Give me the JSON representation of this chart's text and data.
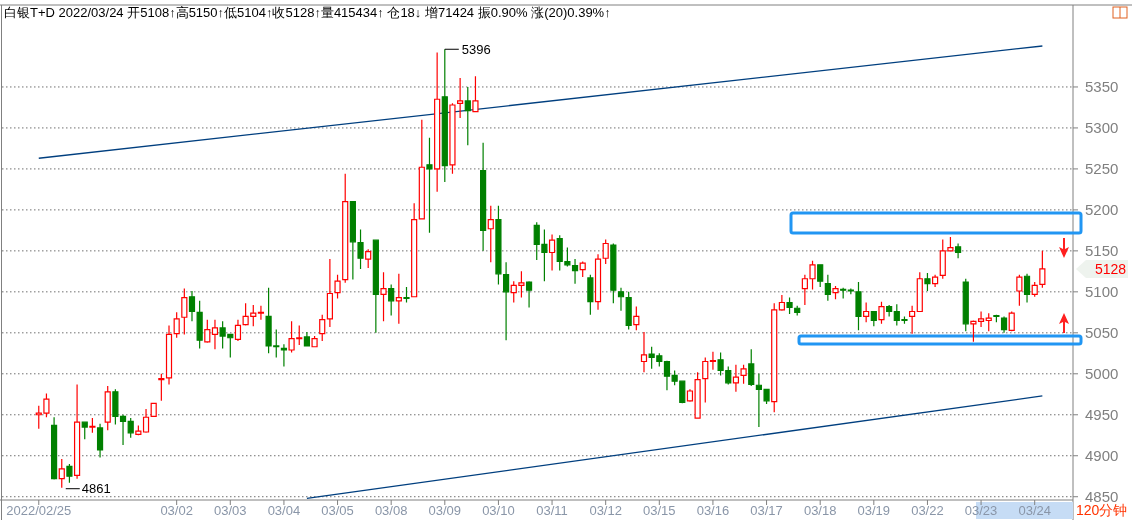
{
  "chart_data": {
    "type": "candlestick",
    "title": "白银T+D 2022/03/24 开5108↑高5150↑低5104↑收5128↑量415434↑ 仓18↓ 增71424 振0.90% 涨(20)0.39%↑",
    "categories": [
      "2022/02/25",
      null,
      null,
      null,
      null,
      null,
      null,
      null,
      null,
      null,
      null,
      null,
      null,
      null,
      null,
      null,
      null,
      null,
      "03/02",
      null,
      null,
      null,
      null,
      null,
      null,
      "03/03",
      null,
      null,
      null,
      null,
      null,
      null,
      "03/04",
      null,
      null,
      null,
      null,
      null,
      null,
      "03/05",
      null,
      null,
      null,
      null,
      null,
      null,
      "03/08",
      null,
      null,
      null,
      null,
      null,
      null,
      "03/09",
      null,
      null,
      null,
      null,
      null,
      null,
      "03/10",
      null,
      null,
      null,
      null,
      null,
      null,
      "03/11",
      null,
      null,
      null,
      null,
      null,
      null,
      "03/12",
      null,
      null,
      null,
      null,
      null,
      null,
      "03/15",
      null,
      null,
      null,
      null,
      null,
      null,
      "03/16",
      null,
      null,
      null,
      null,
      null,
      null,
      "03/17",
      null,
      null,
      null,
      null,
      null,
      null,
      "03/18",
      null,
      null,
      null,
      null,
      null,
      null,
      "03/19",
      null,
      null,
      null,
      null,
      null,
      null,
      "03/22",
      null,
      null,
      null,
      null,
      null,
      null,
      "03/23",
      null,
      null,
      null,
      null,
      null,
      null,
      "03/24",
      null
    ],
    "ohlc": [
      [
        4950,
        4961,
        4933,
        4952
      ],
      [
        4952,
        4976,
        4947,
        4969
      ],
      [
        4937,
        4947,
        4871,
        4872
      ],
      [
        4872,
        4896,
        4861,
        4884
      ],
      [
        4887,
        4890,
        4867,
        4875
      ],
      [
        4876,
        4987,
        4872,
        4941
      ],
      [
        4941,
        4941,
        4920,
        4935
      ],
      [
        4935,
        4946,
        4928,
        4936
      ],
      [
        4934,
        4939,
        4898,
        4907
      ],
      [
        4941,
        4985,
        4931,
        4978
      ],
      [
        4978,
        4981,
        4938,
        4948
      ],
      [
        4948,
        4950,
        4913,
        4942
      ],
      [
        4942,
        4946,
        4922,
        4928
      ],
      [
        4926,
        4937,
        4925,
        4930
      ],
      [
        4929,
        4957,
        4928,
        4947
      ],
      [
        4948,
        4964,
        4948,
        4964
      ],
      [
        4993,
        5000,
        4967,
        4994
      ],
      [
        4995,
        5059,
        4987,
        5048
      ],
      [
        5049,
        5075,
        5044,
        5067
      ],
      [
        5069,
        5104,
        5048,
        5093
      ],
      [
        5094,
        5101,
        5064,
        5076
      ],
      [
        5075,
        5089,
        5031,
        5041
      ],
      [
        5039,
        5066,
        5038,
        5054
      ],
      [
        5048,
        5066,
        5030,
        5056
      ],
      [
        5056,
        5064,
        5031,
        5046
      ],
      [
        5048,
        5048,
        5020,
        5044
      ],
      [
        5042,
        5066,
        5040,
        5059
      ],
      [
        5060,
        5086,
        5059,
        5070
      ],
      [
        5070,
        5084,
        5058,
        5074
      ],
      [
        5074,
        5083,
        5066,
        5075
      ],
      [
        5070,
        5105,
        5025,
        5034
      ],
      [
        5034,
        5054,
        5020,
        5033
      ],
      [
        5031,
        5036,
        5009,
        5029
      ],
      [
        5029,
        5064,
        5026,
        5043
      ],
      [
        5043,
        5059,
        5035,
        5044
      ],
      [
        5045,
        5051,
        5034,
        5034
      ],
      [
        5033,
        5046,
        5033,
        5043
      ],
      [
        5049,
        5072,
        5040,
        5066
      ],
      [
        5067,
        5140,
        5057,
        5098
      ],
      [
        5099,
        5121,
        5092,
        5113
      ],
      [
        5115,
        5244,
        5111,
        5210
      ],
      [
        5210,
        5210,
        5115,
        5161
      ],
      [
        5160,
        5176,
        5128,
        5141
      ],
      [
        5140,
        5152,
        5129,
        5149
      ],
      [
        5163,
        5163,
        5050,
        5097
      ],
      [
        5097,
        5124,
        5064,
        5104
      ],
      [
        5104,
        5109,
        5071,
        5089
      ],
      [
        5089,
        5122,
        5061,
        5093
      ],
      [
        5093,
        5106,
        5087,
        5092
      ],
      [
        5094,
        5208,
        5094,
        5188
      ],
      [
        5189,
        5310,
        5189,
        5252
      ],
      [
        5255,
        5288,
        5172,
        5250
      ],
      [
        5250,
        5392,
        5222,
        5335
      ],
      [
        5338,
        5396,
        5234,
        5254
      ],
      [
        5255,
        5330,
        5244,
        5328
      ],
      [
        5330,
        5361,
        5312,
        5333
      ],
      [
        5333,
        5350,
        5279,
        5321
      ],
      [
        5320,
        5363,
        5320,
        5333
      ],
      [
        5248,
        5282,
        5150,
        5175
      ],
      [
        5177,
        5205,
        5136,
        5188
      ],
      [
        5188,
        5205,
        5109,
        5122
      ],
      [
        5121,
        5136,
        5041,
        5100
      ],
      [
        5099,
        5113,
        5087,
        5108
      ],
      [
        5108,
        5125,
        5093,
        5111
      ],
      [
        5112,
        5113,
        5081,
        5102
      ],
      [
        5181,
        5185,
        5139,
        5158
      ],
      [
        5158,
        5176,
        5113,
        5148
      ],
      [
        5148,
        5170,
        5126,
        5163
      ],
      [
        5165,
        5169,
        5126,
        5137
      ],
      [
        5137,
        5154,
        5131,
        5133
      ],
      [
        5132,
        5140,
        5110,
        5126
      ],
      [
        5127,
        5137,
        5118,
        5135
      ],
      [
        5117,
        5121,
        5072,
        5088
      ],
      [
        5088,
        5146,
        5078,
        5140
      ],
      [
        5141,
        5164,
        5134,
        5159
      ],
      [
        5157,
        5159,
        5086,
        5102
      ],
      [
        5100,
        5105,
        5077,
        5094
      ],
      [
        5093,
        5100,
        5054,
        5059
      ],
      [
        5060,
        5082,
        5053,
        5070
      ],
      [
        5015,
        5051,
        5002,
        5023
      ],
      [
        5024,
        5033,
        5006,
        5020
      ],
      [
        5022,
        5025,
        5009,
        5015
      ],
      [
        5015,
        5016,
        4980,
        4997
      ],
      [
        4998,
        5004,
        4986,
        4991
      ],
      [
        4991,
        4991,
        4964,
        4965
      ],
      [
        4967,
        4981,
        4966,
        4979
      ],
      [
        4946,
        5002,
        4946,
        4993
      ],
      [
        4994,
        5020,
        4965,
        5015
      ],
      [
        5015,
        5027,
        5005,
        5016
      ],
      [
        5017,
        5026,
        4998,
        5004
      ],
      [
        5004,
        5009,
        4987,
        4989
      ],
      [
        4989,
        5011,
        4978,
        4996
      ],
      [
        4998,
        5011,
        4988,
        5006
      ],
      [
        5012,
        5030,
        4985,
        4987
      ],
      [
        4986,
        5000,
        4935,
        4981
      ],
      [
        4981,
        4981,
        4963,
        4967
      ],
      [
        4966,
        5086,
        4953,
        5078
      ],
      [
        5078,
        5096,
        5077,
        5087
      ],
      [
        5087,
        5093,
        5073,
        5081
      ],
      [
        5080,
        5083,
        5071,
        5075
      ],
      [
        5104,
        5121,
        5084,
        5116
      ],
      [
        5116,
        5138,
        5103,
        5133
      ],
      [
        5133,
        5133,
        5106,
        5113
      ],
      [
        5110,
        5121,
        5089,
        5097
      ],
      [
        5099,
        5107,
        5091,
        5104
      ],
      [
        5103,
        5105,
        5092,
        5102
      ],
      [
        5102,
        5104,
        5097,
        5101
      ],
      [
        5100,
        5112,
        5053,
        5070
      ],
      [
        5070,
        5087,
        5063,
        5076
      ],
      [
        5076,
        5076,
        5058,
        5065
      ],
      [
        5066,
        5088,
        5061,
        5082
      ],
      [
        5082,
        5084,
        5070,
        5076
      ],
      [
        5076,
        5085,
        5059,
        5065
      ],
      [
        5066,
        5070,
        5061,
        5065
      ],
      [
        5070,
        5083,
        5049,
        5076
      ],
      [
        5076,
        5124,
        5076,
        5116
      ],
      [
        5116,
        5123,
        5101,
        5110
      ],
      [
        5110,
        5121,
        5106,
        5118
      ],
      [
        5120,
        5164,
        5116,
        5150
      ],
      [
        5150,
        5167,
        5150,
        5154
      ],
      [
        5155,
        5159,
        5141,
        5148
      ],
      [
        5112,
        5116,
        5052,
        5061
      ],
      [
        5061,
        5065,
        5039,
        5064
      ],
      [
        5064,
        5076,
        5057,
        5067
      ],
      [
        5065,
        5074,
        5052,
        5068
      ],
      [
        5071,
        5072,
        5063,
        5070
      ],
      [
        5068,
        5070,
        5050,
        5054
      ],
      [
        5053,
        5076,
        5052,
        5074
      ],
      [
        5101,
        5121,
        5083,
        5118
      ],
      [
        5119,
        5122,
        5087,
        5097
      ],
      [
        5097,
        5112,
        5094,
        5108
      ],
      [
        5109,
        5150,
        5105,
        5128
      ]
    ],
    "colors": [
      "#ff0000",
      "#ff0000",
      "#008000",
      "#ff0000",
      "#008000",
      "#ff0000",
      "#008000",
      "#ff0000",
      "#008000",
      "#ff0000",
      "#008000",
      "#008000",
      "#008000",
      "#ff0000",
      "#ff0000",
      "#ff0000",
      "#ff0000",
      "#ff0000",
      "#ff0000",
      "#ff0000",
      "#008000",
      "#008000",
      "#ff0000",
      "#ff0000",
      "#008000",
      "#008000",
      "#ff0000",
      "#ff0000",
      "#ff0000",
      "#ff0000",
      "#008000",
      "#008000",
      "#008000",
      "#ff0000",
      "#ff0000",
      "#008000",
      "#ff0000",
      "#ff0000",
      "#ff0000",
      "#ff0000",
      "#ff0000",
      "#008000",
      "#008000",
      "#ff0000",
      "#008000",
      "#ff0000",
      "#008000",
      "#ff0000",
      "#008000",
      "#ff0000",
      "#ff0000",
      "#008000",
      "#ff0000",
      "#008000",
      "#ff0000",
      "#ff0000",
      "#008000",
      "#ff0000",
      "#008000",
      "#ff0000",
      "#008000",
      "#008000",
      "#ff0000",
      "#ff0000",
      "#008000",
      "#008000",
      "#008000",
      "#ff0000",
      "#008000",
      "#008000",
      "#008000",
      "#ff0000",
      "#008000",
      "#ff0000",
      "#ff0000",
      "#008000",
      "#008000",
      "#008000",
      "#ff0000",
      "#ff0000",
      "#008000",
      "#008000",
      "#008000",
      "#008000",
      "#008000",
      "#ff0000",
      "#ff0000",
      "#ff0000",
      "#ff0000",
      "#008000",
      "#008000",
      "#ff0000",
      "#ff0000",
      "#008000",
      "#008000",
      "#008000",
      "#ff0000",
      "#ff0000",
      "#008000",
      "#008000",
      "#ff0000",
      "#ff0000",
      "#008000",
      "#008000",
      "#ff0000",
      "#008000",
      "#008000",
      "#008000",
      "#ff0000",
      "#008000",
      "#ff0000",
      "#008000",
      "#008000",
      "#008000",
      "#ff0000",
      "#ff0000",
      "#008000",
      "#ff0000",
      "#ff0000",
      "#ff0000",
      "#008000",
      "#008000",
      "#ff0000",
      "#ff0000",
      "#ff0000",
      "#008000",
      "#008000",
      "#ff0000",
      "#ff0000",
      "#008000",
      "#ff0000",
      "#ff0000"
    ],
    "series": [
      {
        "type": "line",
        "color": "#003f7f",
        "values": [
          5263,
          null,
          null,
          null,
          null,
          null,
          null,
          null,
          null,
          null,
          null,
          null,
          null,
          null,
          null,
          null,
          null,
          null,
          null,
          null,
          null,
          null,
          null,
          null,
          null,
          null,
          null,
          null,
          null,
          null,
          null,
          null,
          null,
          null,
          null,
          null,
          null,
          null,
          null,
          null,
          null,
          null,
          null,
          null,
          null,
          null,
          null,
          null,
          null,
          null,
          null,
          null,
          null,
          null,
          null,
          null,
          null,
          null,
          null,
          null,
          null,
          null,
          null,
          null,
          null,
          null,
          null,
          null,
          null,
          null,
          null,
          null,
          null,
          null,
          null,
          null,
          null,
          null,
          null,
          null,
          null,
          null,
          null,
          null,
          null,
          null,
          null,
          null,
          null,
          null,
          null,
          null,
          null,
          null,
          null,
          null,
          null,
          null,
          null,
          null,
          null,
          null,
          null,
          null,
          null,
          null,
          null,
          null,
          null,
          null,
          null,
          null,
          null,
          null,
          null,
          null,
          null,
          null,
          null,
          null,
          null,
          null,
          null,
          null,
          null,
          null,
          null,
          null,
          null,
          null,
          null,
          5400
        ]
      },
      {
        "type": "line",
        "color": "#003f7f",
        "values": [
          null,
          null,
          null,
          null,
          null,
          null,
          null,
          null,
          null,
          null,
          null,
          null,
          null,
          null,
          null,
          null,
          null,
          null,
          null,
          null,
          null,
          null,
          null,
          null,
          null,
          null,
          null,
          null,
          null,
          null,
          null,
          null,
          null,
          null,
          null,
          4848,
          null,
          null,
          null,
          null,
          null,
          null,
          null,
          null,
          null,
          null,
          null,
          null,
          null,
          null,
          null,
          null,
          null,
          null,
          null,
          null,
          null,
          null,
          null,
          null,
          null,
          null,
          null,
          null,
          null,
          null,
          null,
          null,
          null,
          null,
          null,
          null,
          null,
          null,
          null,
          null,
          null,
          null,
          null,
          null,
          null,
          null,
          null,
          null,
          null,
          null,
          null,
          null,
          null,
          null,
          null,
          null,
          null,
          null,
          null,
          null,
          null,
          null,
          null,
          null,
          null,
          null,
          null,
          null,
          null,
          null,
          null,
          null,
          null,
          null,
          null,
          null,
          null,
          null,
          null,
          null,
          null,
          null,
          null,
          null,
          null,
          null,
          null,
          null,
          null,
          null,
          null,
          null,
          null,
          null,
          null,
          4973
        ]
      }
    ],
    "ylim": [
      4846,
      5450
    ],
    "yticks": [
      4850,
      4900,
      4950,
      5000,
      5050,
      5100,
      5150,
      5200,
      5250,
      5300,
      5350
    ],
    "grid": "y",
    "annotations": [
      "5396",
      "4861",
      "5128",
      "120分钟"
    ]
  }
}
